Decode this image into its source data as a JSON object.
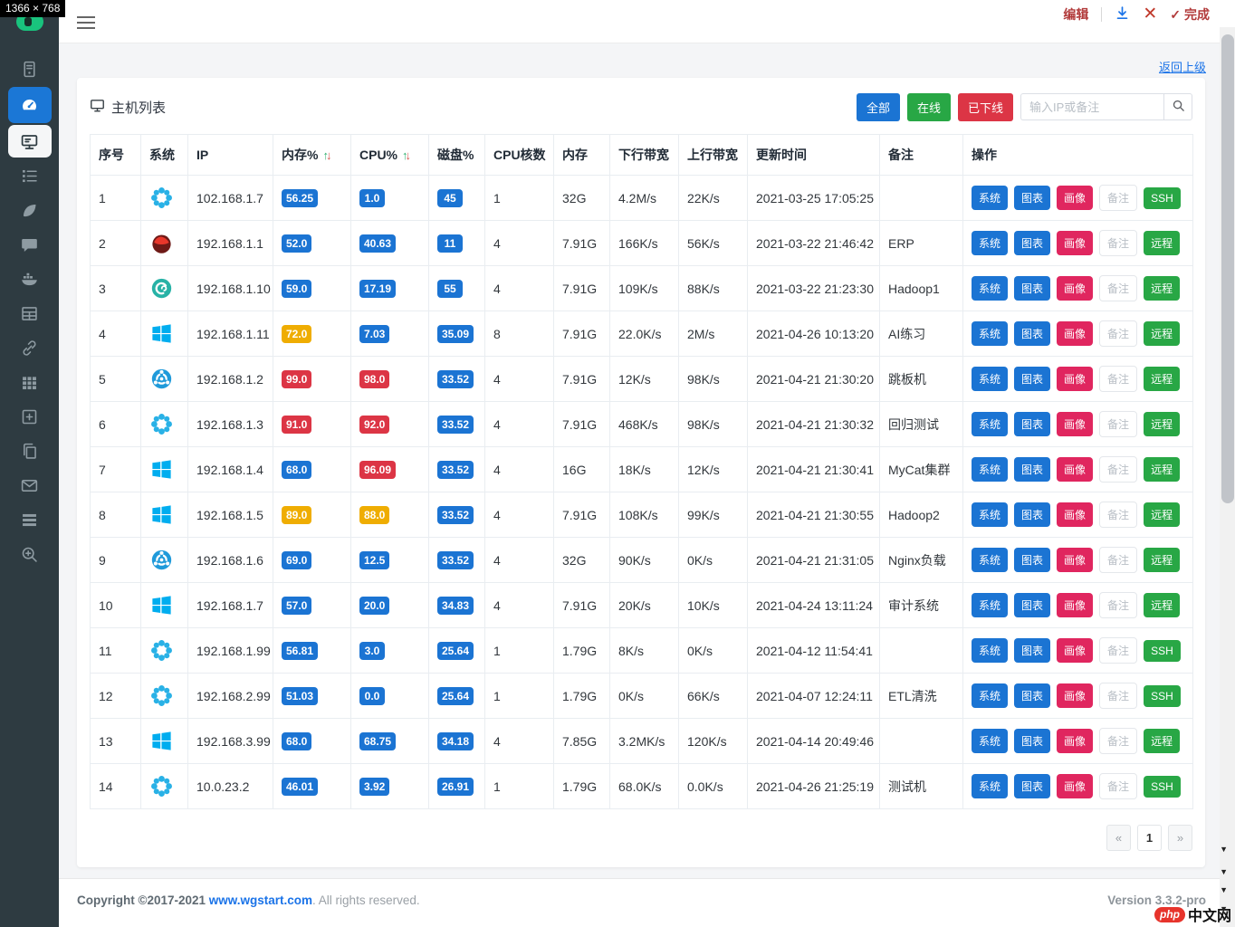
{
  "meta": {
    "size_label": "1366 × 768"
  },
  "annotator": {
    "edit_label": "编辑",
    "done_label": "完成",
    "check_glyph": "✓",
    "close_glyph": "✕"
  },
  "sidebar": {
    "items": [
      {
        "icon": "server"
      },
      {
        "icon": "dashboard",
        "state": "active"
      },
      {
        "icon": "monitor",
        "state": "selected"
      },
      {
        "icon": "tasks"
      },
      {
        "icon": "leaf"
      },
      {
        "icon": "comment"
      },
      {
        "icon": "docker"
      },
      {
        "icon": "table"
      },
      {
        "icon": "link"
      },
      {
        "icon": "grid"
      },
      {
        "icon": "plus-square"
      },
      {
        "icon": "copy"
      },
      {
        "icon": "envelope"
      },
      {
        "icon": "stack"
      },
      {
        "icon": "search-plus"
      }
    ]
  },
  "header": {
    "back_link": "返回上级"
  },
  "panel": {
    "title": "主机列表",
    "filters": [
      {
        "label": "全部",
        "color": "#1b74d3"
      },
      {
        "label": "在线",
        "color": "#28a745"
      },
      {
        "label": "已下线",
        "color": "#dc3545"
      }
    ],
    "search_placeholder": "输入IP或备注"
  },
  "table": {
    "headers": [
      "序号",
      "系统",
      "IP",
      "内存%",
      "CPU%",
      "磁盘%",
      "CPU核数",
      "内存",
      "下行带宽",
      "上行带宽",
      "更新时间",
      "备注",
      "操作"
    ],
    "rows": [
      {
        "num": "1",
        "os": "centos",
        "ip": "102.168.1.7",
        "mem": {
          "v": "56.25",
          "l": "blue"
        },
        "cpu": {
          "v": "1.0",
          "l": "blue"
        },
        "disk": {
          "v": "45",
          "l": "blue"
        },
        "cores": "1",
        "ram": "32G",
        "down": "4.2M/s",
        "up": "22K/s",
        "time": "2021-03-25 17:05:25",
        "note": "",
        "remote": "SSH"
      },
      {
        "num": "2",
        "os": "redhat",
        "ip": "192.168.1.1",
        "mem": {
          "v": "52.0",
          "l": "blue"
        },
        "cpu": {
          "v": "40.63",
          "l": "blue"
        },
        "disk": {
          "v": "11",
          "l": "blue"
        },
        "cores": "4",
        "ram": "7.91G",
        "down": "166K/s",
        "up": "56K/s",
        "time": "2021-03-22 21:46:42",
        "note": "ERP",
        "remote": "远程"
      },
      {
        "num": "3",
        "os": "debian",
        "ip": "192.168.1.10",
        "mem": {
          "v": "59.0",
          "l": "blue"
        },
        "cpu": {
          "v": "17.19",
          "l": "blue"
        },
        "disk": {
          "v": "55",
          "l": "blue"
        },
        "cores": "4",
        "ram": "7.91G",
        "down": "109K/s",
        "up": "88K/s",
        "time": "2021-03-22 21:23:30",
        "note": "Hadoop1",
        "remote": "远程"
      },
      {
        "num": "4",
        "os": "windows",
        "ip": "192.168.1.11",
        "mem": {
          "v": "72.0",
          "l": "yellow"
        },
        "cpu": {
          "v": "7.03",
          "l": "blue"
        },
        "disk": {
          "v": "35.09",
          "l": "blue"
        },
        "cores": "8",
        "ram": "7.91G",
        "down": "22.0K/s",
        "up": "2M/s",
        "time": "2021-04-26 10:13:20",
        "note": "AI练习",
        "remote": "远程"
      },
      {
        "num": "5",
        "os": "ubuntu",
        "ip": "192.168.1.2",
        "mem": {
          "v": "99.0",
          "l": "red"
        },
        "cpu": {
          "v": "98.0",
          "l": "red"
        },
        "disk": {
          "v": "33.52",
          "l": "blue"
        },
        "cores": "4",
        "ram": "7.91G",
        "down": "12K/s",
        "up": "98K/s",
        "time": "2021-04-21 21:30:20",
        "note": "跳板机",
        "remote": "远程"
      },
      {
        "num": "6",
        "os": "centos",
        "ip": "192.168.1.3",
        "mem": {
          "v": "91.0",
          "l": "red"
        },
        "cpu": {
          "v": "92.0",
          "l": "red"
        },
        "disk": {
          "v": "33.52",
          "l": "blue"
        },
        "cores": "4",
        "ram": "7.91G",
        "down": "468K/s",
        "up": "98K/s",
        "time": "2021-04-21 21:30:32",
        "note": "回归测试",
        "remote": "远程"
      },
      {
        "num": "7",
        "os": "windows",
        "ip": "192.168.1.4",
        "mem": {
          "v": "68.0",
          "l": "blue"
        },
        "cpu": {
          "v": "96.09",
          "l": "red"
        },
        "disk": {
          "v": "33.52",
          "l": "blue"
        },
        "cores": "4",
        "ram": "16G",
        "down": "18K/s",
        "up": "12K/s",
        "time": "2021-04-21 21:30:41",
        "note": "MyCat集群",
        "remote": "远程"
      },
      {
        "num": "8",
        "os": "windows",
        "ip": "192.168.1.5",
        "mem": {
          "v": "89.0",
          "l": "yellow"
        },
        "cpu": {
          "v": "88.0",
          "l": "yellow"
        },
        "disk": {
          "v": "33.52",
          "l": "blue"
        },
        "cores": "4",
        "ram": "7.91G",
        "down": "108K/s",
        "up": "99K/s",
        "time": "2021-04-21 21:30:55",
        "note": "Hadoop2",
        "remote": "远程"
      },
      {
        "num": "9",
        "os": "ubuntu",
        "ip": "192.168.1.6",
        "mem": {
          "v": "69.0",
          "l": "blue"
        },
        "cpu": {
          "v": "12.5",
          "l": "blue"
        },
        "disk": {
          "v": "33.52",
          "l": "blue"
        },
        "cores": "4",
        "ram": "32G",
        "down": "90K/s",
        "up": "0K/s",
        "time": "2021-04-21 21:31:05",
        "note": "Nginx负载",
        "remote": "远程"
      },
      {
        "num": "10",
        "os": "windows",
        "ip": "192.168.1.7",
        "mem": {
          "v": "57.0",
          "l": "blue"
        },
        "cpu": {
          "v": "20.0",
          "l": "blue"
        },
        "disk": {
          "v": "34.83",
          "l": "blue"
        },
        "cores": "4",
        "ram": "7.91G",
        "down": "20K/s",
        "up": "10K/s",
        "time": "2021-04-24 13:11:24",
        "note": "审计系统",
        "remote": "远程"
      },
      {
        "num": "11",
        "os": "centos",
        "ip": "192.168.1.99",
        "mem": {
          "v": "56.81",
          "l": "blue"
        },
        "cpu": {
          "v": "3.0",
          "l": "blue"
        },
        "disk": {
          "v": "25.64",
          "l": "blue"
        },
        "cores": "1",
        "ram": "1.79G",
        "down": "8K/s",
        "up": "0K/s",
        "time": "2021-04-12 11:54:41",
        "note": "",
        "remote": "SSH"
      },
      {
        "num": "12",
        "os": "centos",
        "ip": "192.168.2.99",
        "mem": {
          "v": "51.03",
          "l": "blue"
        },
        "cpu": {
          "v": "0.0",
          "l": "blue"
        },
        "disk": {
          "v": "25.64",
          "l": "blue"
        },
        "cores": "1",
        "ram": "1.79G",
        "down": "0K/s",
        "up": "66K/s",
        "time": "2021-04-07 12:24:11",
        "note": "ETL清洗",
        "remote": "SSH"
      },
      {
        "num": "13",
        "os": "windows",
        "ip": "192.168.3.99",
        "mem": {
          "v": "68.0",
          "l": "blue"
        },
        "cpu": {
          "v": "68.75",
          "l": "blue"
        },
        "disk": {
          "v": "34.18",
          "l": "blue"
        },
        "cores": "4",
        "ram": "7.85G",
        "down": "3.2MK/s",
        "up": "120K/s",
        "time": "2021-04-14 20:49:46",
        "note": "",
        "remote": "远程"
      },
      {
        "num": "14",
        "os": "centos",
        "ip": "10.0.23.2",
        "mem": {
          "v": "46.01",
          "l": "blue"
        },
        "cpu": {
          "v": "3.92",
          "l": "blue"
        },
        "disk": {
          "v": "26.91",
          "l": "blue"
        },
        "cores": "1",
        "ram": "1.79G",
        "down": "68.0K/s",
        "up": "0.0K/s",
        "time": "2021-04-26 21:25:19",
        "note": "测试机",
        "remote": "SSH"
      }
    ]
  },
  "actions": {
    "system": "系统",
    "chart": "图表",
    "portrait": "画像",
    "note": "备注"
  },
  "pagination": {
    "prev": "«",
    "current": "1",
    "next": "»"
  },
  "footer": {
    "copyright_prefix": "Copyright ©2017-2021 ",
    "link": "www.wgstart.com",
    "copyright_suffix": ". All rights reserved.",
    "version": "Version 3.3.2-pro"
  },
  "watermark": {
    "php": "php",
    "cn": "中文网"
  },
  "colors": {
    "blue": "#1b74d3",
    "green": "#28a745",
    "red": "#dc3545",
    "pink": "#e0265f",
    "yellow": "#efad02",
    "sidebar": "#2e3b41"
  }
}
